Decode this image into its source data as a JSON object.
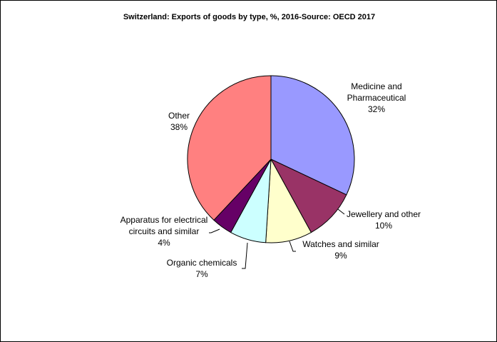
{
  "chart_data": {
    "type": "pie",
    "title": "Switzerland: Exports of goods by type,  %, 2016-Source: OECD 2017",
    "slices": [
      {
        "label_lines": [
          "Medicine and",
          "Pharmaceutical"
        ],
        "value": 32,
        "value_label": "32%",
        "color": "#9999FF"
      },
      {
        "label_lines": [
          "Jewellery and other"
        ],
        "value": 10,
        "value_label": "10%",
        "color": "#993366"
      },
      {
        "label_lines": [
          "Watches and similar"
        ],
        "value": 9,
        "value_label": "9%",
        "color": "#FFFFCC"
      },
      {
        "label_lines": [
          "Organic chemicals"
        ],
        "value": 7,
        "value_label": "7%",
        "color": "#CCFFFF"
      },
      {
        "label_lines": [
          "Apparatus for electrical",
          "circuits and similar"
        ],
        "value": 4,
        "value_label": "4%",
        "color": "#660066"
      },
      {
        "label_lines": [
          "Other"
        ],
        "value": 38,
        "value_label": "38%",
        "color": "#FF8080"
      }
    ],
    "start_angle": "12 o'clock",
    "direction": "clockwise",
    "legend": "none"
  }
}
